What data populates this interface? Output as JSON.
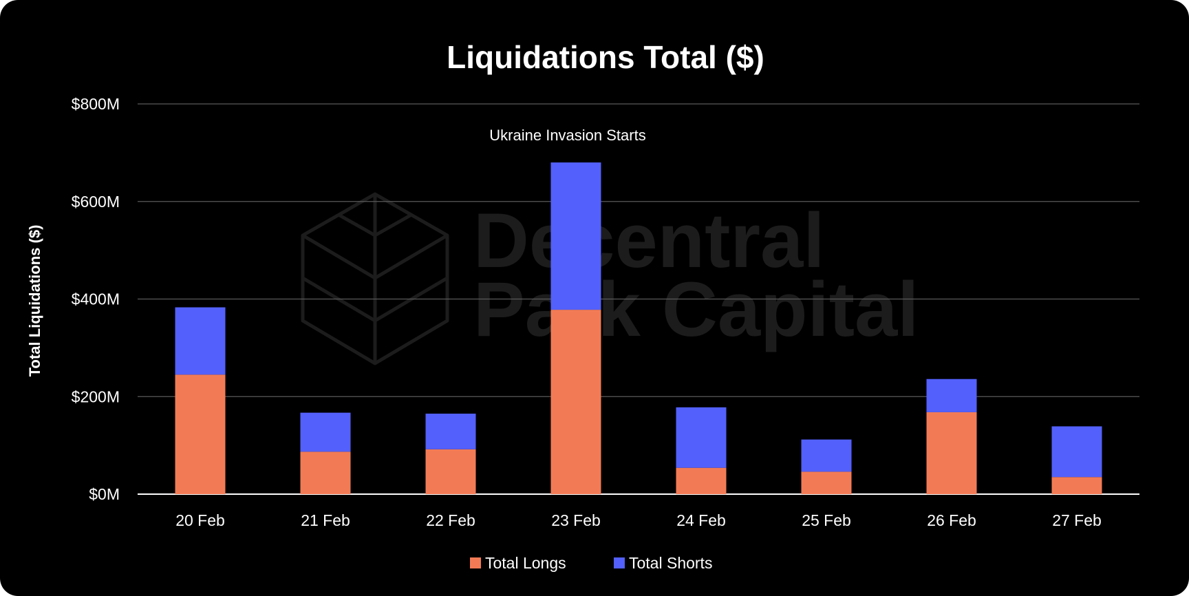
{
  "colors": {
    "background": "#000000",
    "longs": "#f27b56",
    "shorts": "#5360fb",
    "grid": "#5a5a5a",
    "text": "#ffffff",
    "watermark": "#1c1c1c"
  },
  "watermark": {
    "line1": "Decentral",
    "line2": "Park Capital",
    "icon": "decentral-park-capital-logo-icon"
  },
  "chart_data": {
    "type": "bar",
    "stacked": true,
    "title": "Liquidations Total ($)",
    "xlabel": "",
    "ylabel": "Total Liquidations ($)",
    "ylim": [
      0,
      800
    ],
    "yticks": [
      {
        "value": 0,
        "label": "$0M"
      },
      {
        "value": 200,
        "label": "$200M"
      },
      {
        "value": 400,
        "label": "$400M"
      },
      {
        "value": 600,
        "label": "$600M"
      },
      {
        "value": 800,
        "label": "$800M"
      }
    ],
    "categories": [
      "20 Feb",
      "21 Feb",
      "22 Feb",
      "23 Feb",
      "24 Feb",
      "25 Feb",
      "26 Feb",
      "27 Feb"
    ],
    "series": [
      {
        "name": "Total Longs",
        "color": "#f27b56",
        "values": [
          245,
          87,
          92,
          378,
          54,
          46,
          168,
          35
        ]
      },
      {
        "name": "Total Shorts",
        "color": "#5360fb",
        "values": [
          138,
          80,
          73,
          302,
          124,
          66,
          68,
          104
        ]
      }
    ],
    "grid": true,
    "legend_position": "bottom",
    "annotations": [
      {
        "text": "Ukraine Invasion Starts",
        "category": "23 Feb"
      }
    ]
  }
}
